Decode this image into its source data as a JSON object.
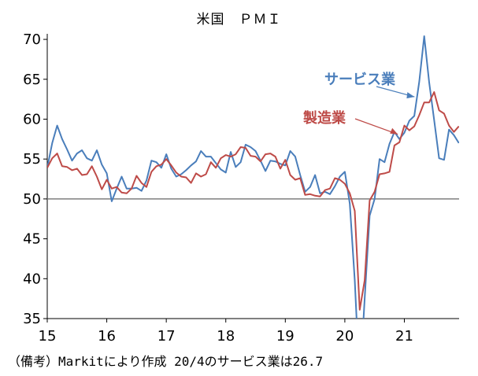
{
  "chart_data": {
    "type": "line",
    "title": "米国　ＰＭＩ",
    "xlabel": "",
    "ylabel": "",
    "ylim": [
      35,
      70.5
    ],
    "yticks": [
      35,
      40,
      45,
      50,
      55,
      60,
      65,
      70
    ],
    "xlim": [
      2015.0,
      2021.92
    ],
    "xticks": [
      {
        "value": 2015,
        "label": "15"
      },
      {
        "value": 2016,
        "label": "16"
      },
      {
        "value": 2017,
        "label": "17"
      },
      {
        "value": 2018,
        "label": "18"
      },
      {
        "value": 2019,
        "label": "19"
      },
      {
        "value": 2020,
        "label": "20"
      },
      {
        "value": 2021,
        "label": "21"
      }
    ],
    "reference_line": 50,
    "grid": false,
    "colors": {
      "services": "#4a7ebb",
      "manufacturing": "#be4b48",
      "reference": "#7f7f7f"
    },
    "series": [
      {
        "name": "サービス業",
        "start": "2015-01",
        "values": [
          53.9,
          57.0,
          59.2,
          57.5,
          56.2,
          54.8,
          55.7,
          56.1,
          55.1,
          54.8,
          56.1,
          54.3,
          53.2,
          49.7,
          51.3,
          52.8,
          51.3,
          51.3,
          51.4,
          51.0,
          52.3,
          54.8,
          54.6,
          53.9,
          55.6,
          53.8,
          52.8,
          53.1,
          53.6,
          54.2,
          54.7,
          56.0,
          55.3,
          55.3,
          54.5,
          53.7,
          53.3,
          55.9,
          54.0,
          54.6,
          56.8,
          56.5,
          56.0,
          54.8,
          53.5,
          54.8,
          54.7,
          54.4,
          54.2,
          56.0,
          55.3,
          53.0,
          50.9,
          51.5,
          53.0,
          50.7,
          50.9,
          50.6,
          51.6,
          52.8,
          53.4,
          49.4,
          39.8,
          26.7,
          37.5,
          47.9,
          50.0,
          55.0,
          54.6,
          56.9,
          58.4,
          57.5,
          58.3,
          59.8,
          60.4,
          64.7,
          70.4,
          64.6,
          59.9,
          55.1,
          54.9,
          58.7,
          58.0,
          57.0
        ]
      },
      {
        "name": "製造業",
        "start": "2015-01",
        "values": [
          53.9,
          55.1,
          55.7,
          54.1,
          54.0,
          53.6,
          53.8,
          53.0,
          53.1,
          54.1,
          52.8,
          51.2,
          52.4,
          51.3,
          51.5,
          50.8,
          50.7,
          51.3,
          52.9,
          52.0,
          51.5,
          53.4,
          54.1,
          54.3,
          55.0,
          54.2,
          53.3,
          52.8,
          52.7,
          52.0,
          53.2,
          52.8,
          53.1,
          54.6,
          53.9,
          55.1,
          55.5,
          55.3,
          55.6,
          56.5,
          56.4,
          55.4,
          55.3,
          54.7,
          55.6,
          55.7,
          55.3,
          53.8,
          54.9,
          53.0,
          52.4,
          52.6,
          50.5,
          50.6,
          50.4,
          50.3,
          51.1,
          51.3,
          52.6,
          52.4,
          51.9,
          50.7,
          48.5,
          36.1,
          39.8,
          49.8,
          50.9,
          53.1,
          53.2,
          53.4,
          56.7,
          57.1,
          59.2,
          58.6,
          59.1,
          60.5,
          62.1,
          62.1,
          63.4,
          61.1,
          60.7,
          59.2,
          58.4,
          59.1
        ]
      }
    ],
    "annotations": [
      {
        "text": "サービス業",
        "series": "サービス業"
      },
      {
        "text": "製造業",
        "series": "製造業"
      }
    ]
  },
  "footnote": "（備考）Markitにより作成 20/4のサービス業は26.7"
}
